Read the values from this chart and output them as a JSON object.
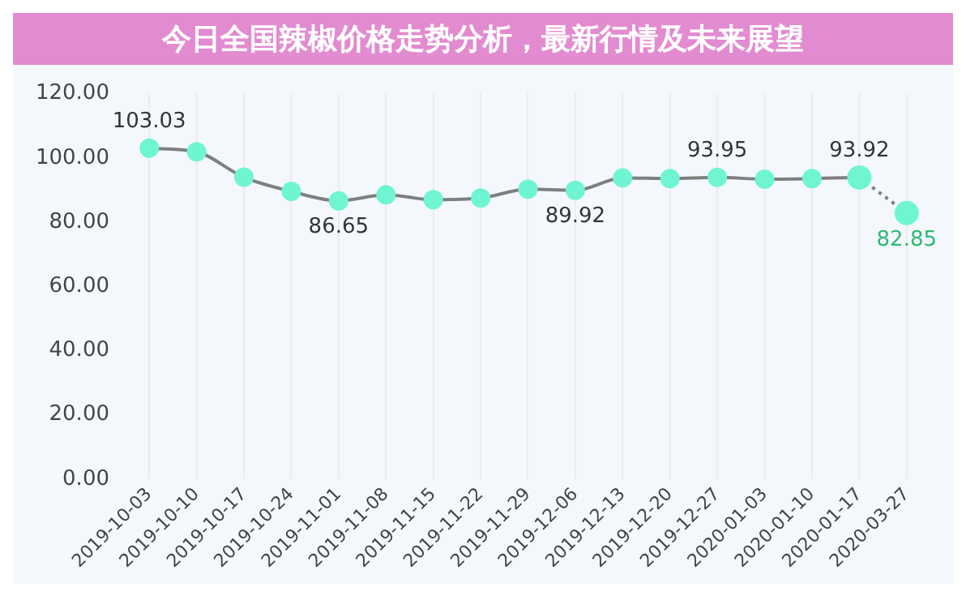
{
  "chart_data": {
    "type": "line",
    "title": "今日全国辣椒价格走势分析，最新行情及未来展望",
    "categories": [
      "2019-10-03",
      "2019-10-10",
      "2019-10-17",
      "2019-10-24",
      "2019-11-01",
      "2019-11-08",
      "2019-11-15",
      "2019-11-22",
      "2019-11-29",
      "2019-12-06",
      "2019-12-13",
      "2019-12-20",
      "2019-12-27",
      "2020-01-03",
      "2020-01-10",
      "2020-01-17",
      "2020-03-27"
    ],
    "series": [
      {
        "color": "#6ff5d2",
        "line_style": "solid",
        "values": [
          103.03,
          101.9,
          94,
          89.6,
          86.65,
          88.5,
          87,
          87.5,
          90.3,
          89.92,
          93.8,
          93.6,
          93.95,
          93.4,
          93.6,
          93.92,
          null
        ],
        "value_labels": [
          "103.03",
          null,
          null,
          null,
          "86.65",
          null,
          null,
          null,
          null,
          "89.92",
          null,
          null,
          "93.95",
          null,
          null,
          "93.92",
          null
        ]
      },
      {
        "color": "#6ff5d2",
        "line_style": "dotted",
        "values": [
          null,
          null,
          null,
          null,
          null,
          null,
          null,
          null,
          null,
          null,
          null,
          null,
          null,
          null,
          null,
          93.92,
          82.85
        ],
        "value_labels": [
          null,
          null,
          null,
          null,
          null,
          null,
          null,
          null,
          null,
          null,
          null,
          null,
          null,
          null,
          null,
          null,
          "82.85"
        ]
      }
    ],
    "ylim": [
      0,
      120
    ],
    "yticks": [
      {
        "value": 0,
        "label": "0.00"
      },
      {
        "value": 20,
        "label": "20.00"
      },
      {
        "value": 40,
        "label": "40.00"
      },
      {
        "value": 60,
        "label": "60.00"
      },
      {
        "value": 80,
        "label": "80.00"
      },
      {
        "value": 100,
        "label": "100.00"
      },
      {
        "value": 120,
        "label": "120.00"
      }
    ],
    "grid": "x",
    "marker": "circle",
    "legend": false
  }
}
